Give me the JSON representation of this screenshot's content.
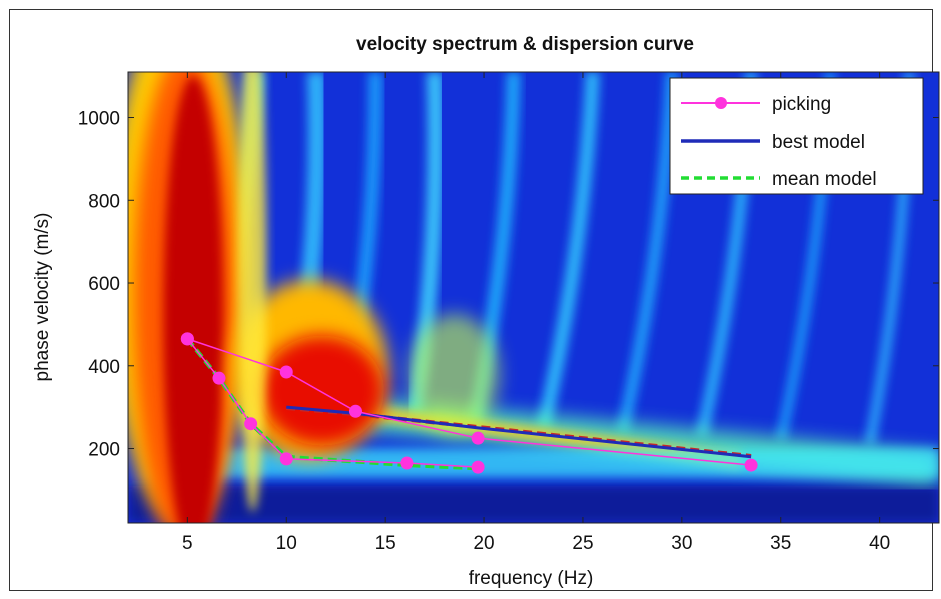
{
  "chart_data": {
    "type": "heatmap",
    "title": "velocity spectrum & dispersion curve",
    "xlabel": "frequency (Hz)",
    "ylabel": "phase velocity (m/s)",
    "xlim": [
      2,
      43
    ],
    "ylim": [
      20,
      1110
    ],
    "xticks": [
      5,
      10,
      15,
      20,
      25,
      30,
      35,
      40
    ],
    "yticks": [
      200,
      400,
      600,
      800,
      1000
    ],
    "colormap": "jet",
    "legend_position": "top-right",
    "series": [
      {
        "name": "picking",
        "color": "#ff33dd",
        "style": "solid-with-markers",
        "points": [
          [
            5.0,
            465
          ],
          [
            10.0,
            385
          ],
          [
            13.5,
            290
          ],
          [
            19.7,
            225
          ],
          [
            33.5,
            160
          ]
        ]
      },
      {
        "name": "picking",
        "color": "#ff33dd",
        "style": "solid-with-markers",
        "points": [
          [
            5.0,
            465
          ],
          [
            6.6,
            370
          ],
          [
            8.2,
            260
          ],
          [
            10.0,
            175
          ],
          [
            16.1,
            165
          ],
          [
            19.7,
            155
          ]
        ]
      },
      {
        "name": "best model",
        "color": "#1f2bb8",
        "style": "solid",
        "points": [
          [
            10.0,
            300
          ],
          [
            13.5,
            285
          ],
          [
            19.7,
            250
          ],
          [
            33.5,
            180
          ]
        ]
      },
      {
        "name": "mean model",
        "color": "#22dd33",
        "style": "dashed",
        "points": [
          [
            5.0,
            465
          ],
          [
            6.6,
            370
          ],
          [
            8.2,
            260
          ],
          [
            10.0,
            180
          ],
          [
            16.1,
            160
          ],
          [
            19.7,
            152
          ]
        ]
      },
      {
        "name": "mean model",
        "color": "#c62828",
        "style": "dashed",
        "points": [
          [
            10.0,
            298
          ],
          [
            13.5,
            283
          ],
          [
            19.7,
            252
          ],
          [
            33.5,
            182
          ]
        ]
      }
    ],
    "legend": [
      "picking",
      "best model",
      "mean model"
    ]
  }
}
